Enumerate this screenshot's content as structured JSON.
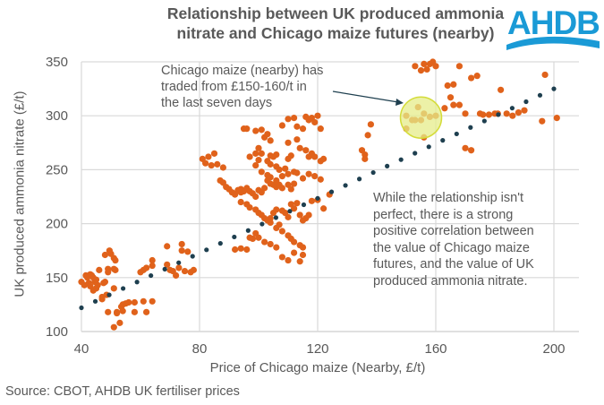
{
  "logo": {
    "text": "AHDB",
    "color": "#1a9ad6"
  },
  "source": "Source: CBOT, AHDB UK fertiliser prices",
  "chart_data": {
    "type": "scatter",
    "title": "Relationship between UK produced ammonia nitrate and Chicago maize futures (nearby)",
    "xlabel": "Price of Chicago maize (Nearby, £/t)",
    "ylabel": "UK produced ammonia nitrate (£/t)",
    "xlim": [
      40,
      208
    ],
    "ylim": [
      100,
      350
    ],
    "xticks": [
      "40",
      "80",
      "120",
      "160",
      "200"
    ],
    "yticks": [
      "100",
      "150",
      "200",
      "250",
      "300",
      "350"
    ],
    "xtick_values": [
      40,
      80,
      120,
      160,
      200
    ],
    "ytick_values": [
      100,
      150,
      200,
      250,
      300,
      350
    ],
    "grid": true,
    "point_color": "#e0621b",
    "trend_color": "#1e3f4f",
    "highlight_color": "#e5ec8a",
    "trendline": {
      "x": [
        40,
        200
      ],
      "y": [
        122,
        325
      ],
      "style": "dotted"
    },
    "highlight": {
      "x": 155,
      "y": 300,
      "label": "Chicago maize (nearby) has traded from £150-160/t in the last seven days"
    },
    "annotations": [
      "Chicago maize (nearby) has traded from £150-160/t in the last seven days",
      "While the relationship isn't perfect, there is a strong positive correlation between the value of Chicago maize futures, and the value of UK produced ammonia nitrate."
    ],
    "annotation_lines": {
      "note1": [
        "Chicago maize (nearby) has",
        "traded from £150-160/t in",
        "the last seven days"
      ],
      "note2": [
        "While the relationship isn't",
        "perfect, there is a strong",
        "positive correlation between",
        "the value of Chicago maize",
        "futures, and the value of UK",
        "produced ammonia nitrate."
      ]
    },
    "series": [
      {
        "name": "Observations",
        "points": [
          [
            40,
            146
          ],
          [
            41,
            143
          ],
          [
            41.5,
            152
          ],
          [
            42,
            150
          ],
          [
            42.5,
            145
          ],
          [
            43,
            153
          ],
          [
            43.5,
            152
          ],
          [
            44,
            150
          ],
          [
            44.5,
            146
          ],
          [
            45,
            148
          ],
          [
            45.5,
            143
          ],
          [
            45,
            140
          ],
          [
            44,
            138
          ],
          [
            43,
            142
          ],
          [
            46,
            157
          ],
          [
            47,
            132
          ],
          [
            47.5,
            145
          ],
          [
            48,
            146
          ],
          [
            48.5,
            134
          ],
          [
            47,
            130
          ],
          [
            49,
            158
          ],
          [
            48,
            171
          ],
          [
            49.5,
            175
          ],
          [
            50,
            172
          ],
          [
            51,
            168
          ],
          [
            51.5,
            166
          ],
          [
            49,
            155
          ],
          [
            51,
            158
          ],
          [
            51.5,
            157
          ],
          [
            51,
            140
          ],
          [
            49,
            118
          ],
          [
            52,
            118
          ],
          [
            51,
            104
          ],
          [
            53,
            108
          ],
          [
            52,
            117
          ],
          [
            53.5,
            123
          ],
          [
            54,
            125
          ],
          [
            55,
            126
          ],
          [
            56,
            127
          ],
          [
            58,
            118
          ],
          [
            61,
            128
          ],
          [
            62,
            118
          ],
          [
            64,
            128
          ],
          [
            54,
            119
          ],
          [
            58,
            127
          ],
          [
            60,
            155
          ],
          [
            61,
            157
          ],
          [
            62,
            159
          ],
          [
            64,
            161
          ],
          [
            64,
            166
          ],
          [
            69,
            162
          ],
          [
            70,
            157
          ],
          [
            71,
            156
          ],
          [
            69,
            179
          ],
          [
            72,
            152
          ],
          [
            74,
            181
          ],
          [
            74,
            175
          ],
          [
            76,
            174
          ],
          [
            75,
            156
          ],
          [
            77,
            155
          ],
          [
            78,
            157
          ],
          [
            73,
            159
          ],
          [
            81,
            260
          ],
          [
            82,
            256
          ],
          [
            84,
            254
          ],
          [
            86,
            255
          ],
          [
            85,
            265
          ],
          [
            83,
            262
          ],
          [
            87,
            240
          ],
          [
            88,
            238
          ],
          [
            88,
            252
          ],
          [
            89,
            234
          ],
          [
            90,
            232
          ],
          [
            91,
            229
          ],
          [
            92,
            227
          ],
          [
            93,
            231
          ],
          [
            94,
            229
          ],
          [
            95,
            230
          ],
          [
            95,
            288
          ],
          [
            96,
            288
          ],
          [
            99,
            286
          ],
          [
            101,
            287
          ],
          [
            102,
            280
          ],
          [
            103,
            283
          ],
          [
            104,
            277
          ],
          [
            100,
            270
          ],
          [
            99,
            265
          ],
          [
            101,
            265
          ],
          [
            104,
            263
          ],
          [
            105,
            262
          ],
          [
            106,
            264
          ],
          [
            103,
            258
          ],
          [
            104,
            255
          ],
          [
            106,
            253
          ],
          [
            107,
            250
          ],
          [
            94,
            232
          ],
          [
            96,
            233
          ],
          [
            97,
            230
          ],
          [
            98,
            228
          ],
          [
            99,
            225
          ],
          [
            100,
            231
          ],
          [
            101,
            229
          ],
          [
            102,
            233
          ],
          [
            103,
            240
          ],
          [
            104,
            237
          ],
          [
            105,
            236
          ],
          [
            106,
            234
          ],
          [
            107,
            236
          ],
          [
            108,
            233
          ],
          [
            110,
            236
          ],
          [
            111,
            232
          ],
          [
            112,
            237
          ],
          [
            94,
            220
          ],
          [
            96,
            218
          ],
          [
            97,
            215
          ],
          [
            99,
            213
          ],
          [
            100,
            210
          ],
          [
            101,
            208
          ],
          [
            102,
            205
          ],
          [
            103,
            203
          ],
          [
            104,
            201
          ],
          [
            106,
            196
          ],
          [
            107,
            199
          ],
          [
            108,
            193
          ],
          [
            110,
            189
          ],
          [
            111,
            186
          ],
          [
            112,
            183
          ],
          [
            114,
            180
          ],
          [
            115,
            178
          ],
          [
            92,
            176
          ],
          [
            94,
            177
          ],
          [
            96,
            176
          ],
          [
            97,
            187
          ],
          [
            98,
            186
          ],
          [
            99,
            191
          ],
          [
            100,
            187
          ],
          [
            102,
            183
          ],
          [
            104,
            181
          ],
          [
            106,
            178
          ],
          [
            108,
            169
          ],
          [
            110,
            166
          ],
          [
            112,
            173
          ],
          [
            114,
            165
          ],
          [
            115,
            171
          ],
          [
            104,
            205
          ],
          [
            105,
            210
          ],
          [
            106,
            213
          ],
          [
            108,
            212
          ],
          [
            109,
            210
          ],
          [
            110,
            206
          ],
          [
            111,
            218
          ],
          [
            112,
            214
          ],
          [
            113,
            219
          ],
          [
            114,
            208
          ],
          [
            115,
            203
          ],
          [
            116,
            205
          ],
          [
            117,
            208
          ],
          [
            118,
            221
          ],
          [
            120,
            222
          ],
          [
            122,
            214
          ],
          [
            124,
            227
          ],
          [
            108,
            291
          ],
          [
            110,
            297
          ],
          [
            112,
            298
          ],
          [
            113,
            290
          ],
          [
            115,
            288
          ],
          [
            116,
            299
          ],
          [
            117,
            296
          ],
          [
            118,
            298
          ],
          [
            119,
            294
          ],
          [
            120,
            300
          ],
          [
            121,
            288
          ],
          [
            113,
            278
          ],
          [
            114,
            270
          ],
          [
            116,
            268
          ],
          [
            118,
            265
          ],
          [
            117,
            262
          ],
          [
            119,
            262
          ],
          [
            121,
            258
          ],
          [
            122,
            260
          ],
          [
            110,
            275
          ],
          [
            111,
            263
          ],
          [
            97,
            262
          ],
          [
            99,
            254
          ],
          [
            100,
            259
          ],
          [
            101,
            248
          ],
          [
            103,
            245
          ],
          [
            104,
            243
          ],
          [
            106,
            240
          ],
          [
            108,
            244
          ],
          [
            109,
            251
          ],
          [
            110,
            246
          ],
          [
            112,
            248
          ],
          [
            113,
            247
          ],
          [
            115,
            242
          ],
          [
            117,
            246
          ],
          [
            119,
            244
          ],
          [
            121,
            241
          ],
          [
            110,
            260
          ],
          [
            135,
            268
          ],
          [
            136,
            264
          ],
          [
            136,
            260
          ],
          [
            138,
            292
          ],
          [
            137,
            282
          ],
          [
            150,
            288
          ],
          [
            153,
            296
          ],
          [
            153,
            346
          ],
          [
            155,
            342
          ],
          [
            156,
            348
          ],
          [
            158,
            348
          ],
          [
            159,
            350
          ],
          [
            157,
            343
          ],
          [
            160,
            346
          ],
          [
            168,
            346
          ],
          [
            150,
            300
          ],
          [
            152,
            296
          ],
          [
            155,
            296
          ],
          [
            154,
            308
          ],
          [
            156,
            302
          ],
          [
            156,
            280
          ],
          [
            158,
            299
          ],
          [
            160,
            300
          ],
          [
            163,
            307
          ],
          [
            165,
            317
          ],
          [
            166,
            310
          ],
          [
            164,
            328
          ],
          [
            166,
            329
          ],
          [
            168,
            310
          ],
          [
            170,
            302
          ],
          [
            170,
            270
          ],
          [
            172,
            268
          ],
          [
            175,
            302
          ],
          [
            176,
            301
          ],
          [
            178,
            301
          ],
          [
            180,
            302
          ],
          [
            181,
            302
          ],
          [
            184,
            302
          ],
          [
            186,
            300
          ],
          [
            188,
            303
          ],
          [
            182,
            324
          ],
          [
            190,
            305
          ],
          [
            196,
            295
          ],
          [
            201,
            298
          ],
          [
            197,
            338
          ],
          [
            172,
            335
          ],
          [
            174,
            337
          ]
        ]
      }
    ]
  }
}
